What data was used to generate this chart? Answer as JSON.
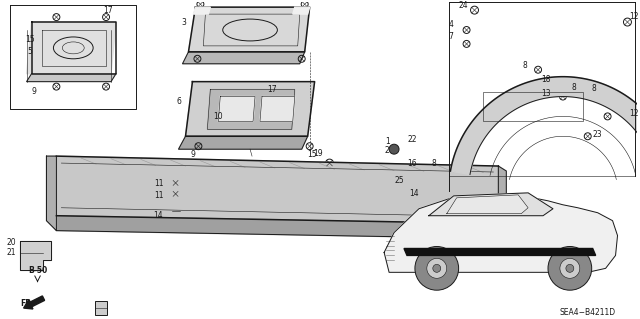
{
  "bg_color": "#ffffff",
  "line_color": "#1a1a1a",
  "fig_width": 6.4,
  "fig_height": 3.19,
  "dpi": 100,
  "diagram_code": "SEA4-B4211D"
}
